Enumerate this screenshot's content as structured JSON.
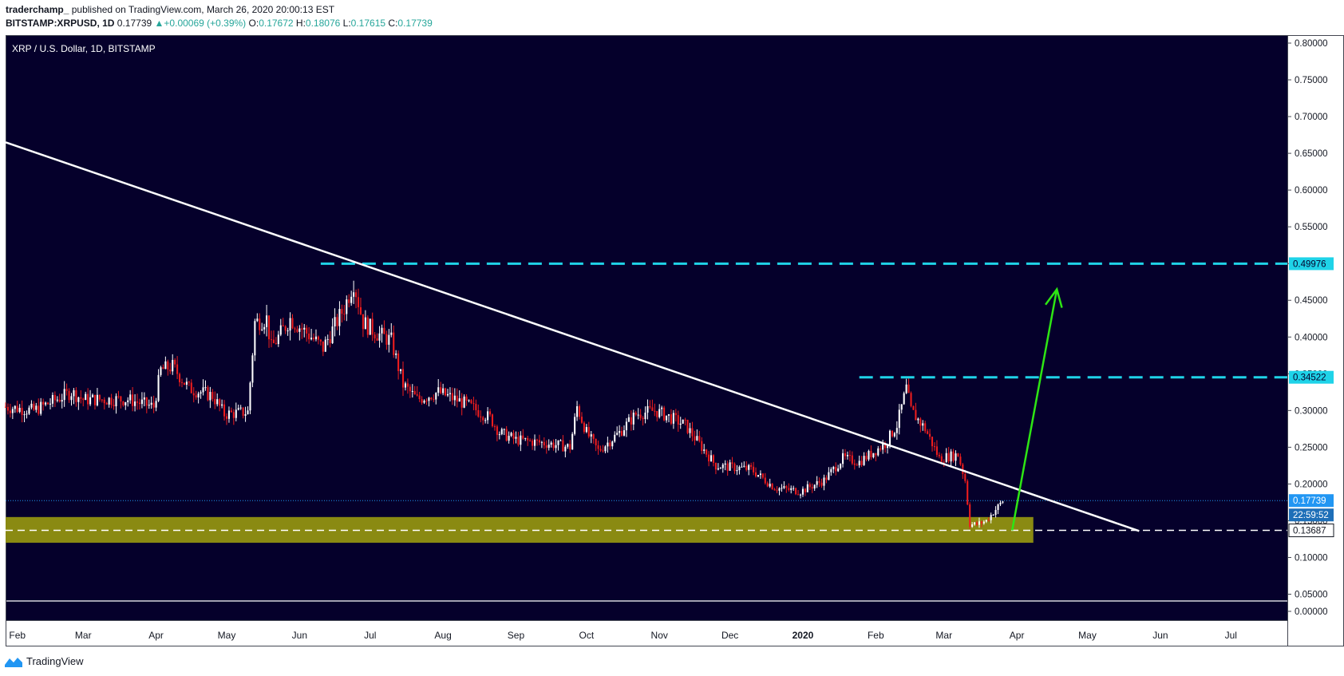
{
  "header": {
    "author": "traderchamp_",
    "published_text": "published on TradingView.com, March 26, 2020 20:00:13 EST",
    "symbol": "BITSTAMP:XRPUSD, 1D",
    "last_price": "0.17739",
    "change": "+0.00069 (+0.39%)",
    "open_label": "O:",
    "open": "0.17672",
    "high_label": "H:",
    "high": "0.18076",
    "low_label": "L:",
    "low": "0.17615",
    "close_label": "C:",
    "close": "0.17739"
  },
  "footer": {
    "brand": "TradingView",
    "logo_icon": "tradingview-logo-icon"
  },
  "chart_data": {
    "type": "candlestick",
    "title": "XRP / U.S. Dollar, 1D, BITSTAMP",
    "y_ticks": [
      "0.80000",
      "0.75000",
      "0.70000",
      "0.65000",
      "0.60000",
      "0.55000",
      "0.50000",
      "0.45000",
      "0.40000",
      "0.35000",
      "0.30000",
      "0.25000",
      "0.20000",
      "0.15000",
      "0.10000",
      "0.05000",
      "0.00000"
    ],
    "ylim": [
      0.05,
      0.8
    ],
    "x_ticks": [
      "Feb",
      "Mar",
      "Apr",
      "May",
      "Jun",
      "Jul",
      "Aug",
      "Sep",
      "Oct",
      "Nov",
      "Dec",
      "2020",
      "Feb",
      "Mar",
      "Apr",
      "May",
      "Jun",
      "Jul"
    ],
    "x_tick_dates": [
      "2019-02-01",
      "2019-03-01",
      "2019-04-01",
      "2019-05-01",
      "2019-06-01",
      "2019-07-01",
      "2019-08-01",
      "2019-09-01",
      "2019-10-01",
      "2019-11-01",
      "2019-12-01",
      "2020-01-01",
      "2020-02-01",
      "2020-03-01",
      "2020-04-01",
      "2020-05-01",
      "2020-06-01",
      "2020-07-01"
    ],
    "xlim": [
      "2019-01-27",
      "2020-07-25"
    ],
    "price_path": [
      [
        "2019-01-27",
        0.305
      ],
      [
        "2019-02-08",
        0.3
      ],
      [
        "2019-02-24",
        0.325
      ],
      [
        "2019-03-01",
        0.315
      ],
      [
        "2019-03-20",
        0.315
      ],
      [
        "2019-03-31",
        0.305
      ],
      [
        "2019-04-03",
        0.355
      ],
      [
        "2019-04-08",
        0.36
      ],
      [
        "2019-04-15",
        0.33
      ],
      [
        "2019-04-25",
        0.32
      ],
      [
        "2019-04-30",
        0.295
      ],
      [
        "2019-05-10",
        0.298
      ],
      [
        "2019-05-13",
        0.42
      ],
      [
        "2019-05-18",
        0.425
      ],
      [
        "2019-05-20",
        0.385
      ],
      [
        "2019-05-28",
        0.425
      ],
      [
        "2019-06-06",
        0.4
      ],
      [
        "2019-06-11",
        0.385
      ],
      [
        "2019-06-20",
        0.44
      ],
      [
        "2019-06-24",
        0.475
      ],
      [
        "2019-06-28",
        0.42
      ],
      [
        "2019-07-04",
        0.405
      ],
      [
        "2019-07-10",
        0.395
      ],
      [
        "2019-07-15",
        0.335
      ],
      [
        "2019-07-21",
        0.315
      ],
      [
        "2019-07-30",
        0.325
      ],
      [
        "2019-08-10",
        0.31
      ],
      [
        "2019-08-21",
        0.29
      ],
      [
        "2019-08-25",
        0.27
      ],
      [
        "2019-09-01",
        0.26
      ],
      [
        "2019-09-15",
        0.255
      ],
      [
        "2019-09-24",
        0.25
      ],
      [
        "2019-09-27",
        0.305
      ],
      [
        "2019-10-01",
        0.27
      ],
      [
        "2019-10-06",
        0.245
      ],
      [
        "2019-10-15",
        0.27
      ],
      [
        "2019-10-22",
        0.295
      ],
      [
        "2019-10-30",
        0.3
      ],
      [
        "2019-11-06",
        0.29
      ],
      [
        "2019-11-12",
        0.28
      ],
      [
        "2019-11-25",
        0.225
      ],
      [
        "2019-12-10",
        0.22
      ],
      [
        "2019-12-20",
        0.195
      ],
      [
        "2019-12-31",
        0.19
      ],
      [
        "2020-01-10",
        0.205
      ],
      [
        "2020-01-18",
        0.235
      ],
      [
        "2020-01-25",
        0.23
      ],
      [
        "2020-02-05",
        0.255
      ],
      [
        "2020-02-10",
        0.28
      ],
      [
        "2020-02-14",
        0.33
      ],
      [
        "2020-02-16",
        0.3
      ],
      [
        "2020-02-22",
        0.275
      ],
      [
        "2020-02-28",
        0.235
      ],
      [
        "2020-03-07",
        0.24
      ],
      [
        "2020-03-10",
        0.205
      ],
      [
        "2020-03-12",
        0.145
      ],
      [
        "2020-03-15",
        0.145
      ],
      [
        "2020-03-19",
        0.15
      ],
      [
        "2020-03-26",
        0.177
      ]
    ],
    "candle_style": {
      "up_color": "#ffffff",
      "down_color": "#ef1d1d"
    },
    "annotations": {
      "trendline": {
        "start": [
          "2019-01-27",
          0.665
        ],
        "end": [
          "2020-05-23",
          0.136
        ],
        "color": "#ffffff"
      },
      "resistance_levels": [
        {
          "value": 0.49976,
          "label": "0.49976",
          "from": "2019-06-10",
          "color": "#1fd3e8"
        },
        {
          "value": 0.34522,
          "label": "0.34522",
          "from": "2020-01-25",
          "color": "#1fd3e8"
        }
      ],
      "support_level": {
        "value": 0.13687,
        "label": "0.13687",
        "color": "#ffffff"
      },
      "support_zone": {
        "low": 0.12,
        "high": 0.155,
        "to": "2020-04-08",
        "color": "#8a8a12"
      },
      "current_price": {
        "value": 0.17739,
        "label": "0.17739",
        "countdown": "22:59:52",
        "color": "#2196f3"
      },
      "projection_arrow": {
        "start": [
          "2020-03-30",
          0.13687
        ],
        "end": [
          "2020-04-18",
          0.465
        ],
        "color": "#2ee614"
      }
    },
    "colors": {
      "background": "#05002b",
      "grid": "none",
      "axis_text": "#131722"
    }
  }
}
